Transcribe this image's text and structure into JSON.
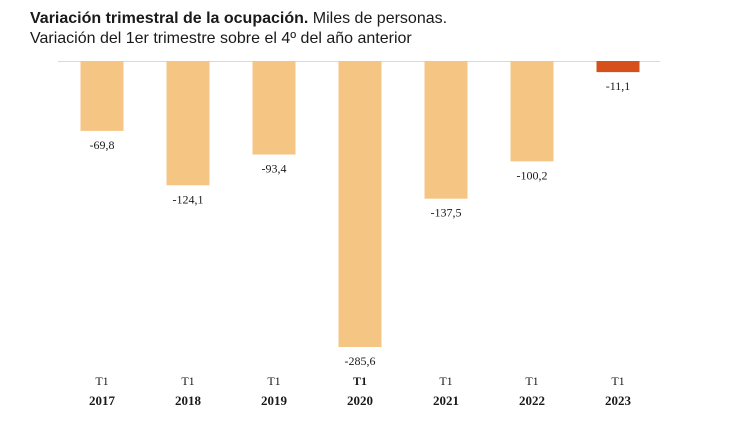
{
  "title": {
    "bold": "Variación trimestral de la ocupación.",
    "rest": " Miles de personas.",
    "subtitle": "Variación del 1er trimestre sobre el 4º del año anterior"
  },
  "colors": {
    "bar": "#f5c584",
    "highlight": "#d5501a",
    "axis": "#d9d9d9",
    "text": "#1a1a1a"
  },
  "chart_data": {
    "type": "bar",
    "categories": [
      {
        "quarter": "T1",
        "year": "2017"
      },
      {
        "quarter": "T1",
        "year": "2018"
      },
      {
        "quarter": "T1",
        "year": "2019"
      },
      {
        "quarter": "T1",
        "year": "2020"
      },
      {
        "quarter": "T1",
        "year": "2021"
      },
      {
        "quarter": "T1",
        "year": "2022"
      },
      {
        "quarter": "T1",
        "year": "2023"
      }
    ],
    "values": [
      -69.8,
      -124.1,
      -93.4,
      -285.6,
      -137.5,
      -100.2,
      -11.1
    ],
    "value_labels": [
      "-69,8",
      "-124,1",
      "-93,4",
      "-285,6",
      "-137,5",
      "-100,2",
      "-11,1"
    ],
    "highlight_index": 6,
    "bold_category_index": 3,
    "ylim": [
      -285.6,
      0
    ],
    "grid": false,
    "legend": "none"
  }
}
